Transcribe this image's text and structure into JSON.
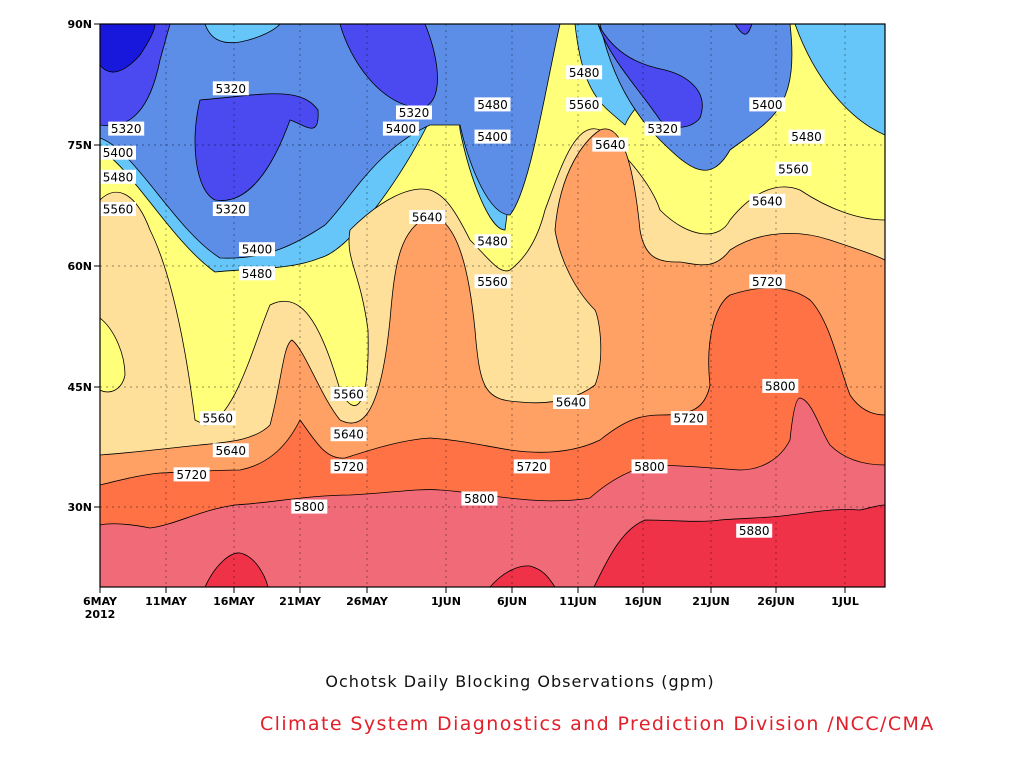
{
  "chart_data": {
    "type": "contour",
    "title": "Ochotsk Daily Blocking Observations (gpm)",
    "credit": "Climate System Diagnostics and Prediction Division /NCC/CMA",
    "x_ticks": [
      "6MAY",
      "11MAY",
      "16MAY",
      "21MAY",
      "26MAY",
      "1JUN",
      "6JUN",
      "11JUN",
      "16JUN",
      "21JUN",
      "26JUN",
      "1JUL"
    ],
    "x_year_label": "2012",
    "y_ticks": [
      "90N",
      "75N",
      "60N",
      "45N",
      "30N"
    ],
    "x_range": [
      "2012-05-06",
      "2012-07-05"
    ],
    "y_range": [
      20,
      90
    ],
    "grid": true,
    "levels": [
      5320,
      5400,
      5480,
      5560,
      5640,
      5720,
      5800,
      5880
    ],
    "colors": {
      "lt5240": "#1818dc",
      "5240-5320": "#4a4af0",
      "5320-5400": "#5c8ee8",
      "5400-5480": "#66c6fa",
      "5480-5560": "#ffff7a",
      "5560-5640": "#ffe09a",
      "5640-5720": "#ffa064",
      "5720-5800": "#ff7246",
      "5800-5880": "#f06a78",
      "gt5880": "#f03248"
    },
    "contour_labels": [
      {
        "value": "5320",
        "date": "May 16",
        "lat": 82
      },
      {
        "value": "5320",
        "date": "May 8",
        "lat": 77
      },
      {
        "value": "5400",
        "date": "May 6",
        "lat": 74
      },
      {
        "value": "5480",
        "date": "May 6",
        "lat": 71
      },
      {
        "value": "5560",
        "date": "May 7",
        "lat": 67
      },
      {
        "value": "5320",
        "date": "May 16",
        "lat": 67
      },
      {
        "value": "5400",
        "date": "May 18",
        "lat": 62
      },
      {
        "value": "5480",
        "date": "May 18",
        "lat": 59
      },
      {
        "value": "5320",
        "date": "May 30",
        "lat": 79
      },
      {
        "value": "5400",
        "date": "May 29",
        "lat": 77
      },
      {
        "value": "5640",
        "date": "May 31",
        "lat": 66
      },
      {
        "value": "5480",
        "date": "Jun 5",
        "lat": 80
      },
      {
        "value": "5400",
        "date": "Jun 5",
        "lat": 76
      },
      {
        "value": "5480",
        "date": "Jun 5",
        "lat": 63
      },
      {
        "value": "5560",
        "date": "Jun 5",
        "lat": 58
      },
      {
        "value": "5480",
        "date": "Jun 12",
        "lat": 84
      },
      {
        "value": "5560",
        "date": "Jun 12",
        "lat": 80
      },
      {
        "value": "5640",
        "date": "Jun 14",
        "lat": 75
      },
      {
        "value": "5320",
        "date": "Jun 18",
        "lat": 77
      },
      {
        "value": "5400",
        "date": "Jun 26",
        "lat": 80
      },
      {
        "value": "5480",
        "date": "Jun 29",
        "lat": 76
      },
      {
        "value": "5560",
        "date": "Jun 28",
        "lat": 72
      },
      {
        "value": "5640",
        "date": "Jun 26",
        "lat": 68
      },
      {
        "value": "5720",
        "date": "Jun 26",
        "lat": 58
      },
      {
        "value": "5560",
        "date": "May 25",
        "lat": 44
      },
      {
        "value": "5640",
        "date": "May 25",
        "lat": 39
      },
      {
        "value": "5720",
        "date": "May 25",
        "lat": 35
      },
      {
        "value": "5560",
        "date": "May 15",
        "lat": 41
      },
      {
        "value": "5640",
        "date": "May 16",
        "lat": 37
      },
      {
        "value": "5720",
        "date": "May 13",
        "lat": 34
      },
      {
        "value": "5800",
        "date": "May 22",
        "lat": 30
      },
      {
        "value": "5640",
        "date": "Jun 11",
        "lat": 43
      },
      {
        "value": "5720",
        "date": "Jun 8",
        "lat": 35
      },
      {
        "value": "5800",
        "date": "Jun 4",
        "lat": 31
      },
      {
        "value": "5720",
        "date": "Jun 20",
        "lat": 41
      },
      {
        "value": "5800",
        "date": "Jun 17",
        "lat": 35
      },
      {
        "value": "5800",
        "date": "Jun 27",
        "lat": 45
      },
      {
        "value": "5880",
        "date": "Jun 25",
        "lat": 27
      }
    ]
  }
}
